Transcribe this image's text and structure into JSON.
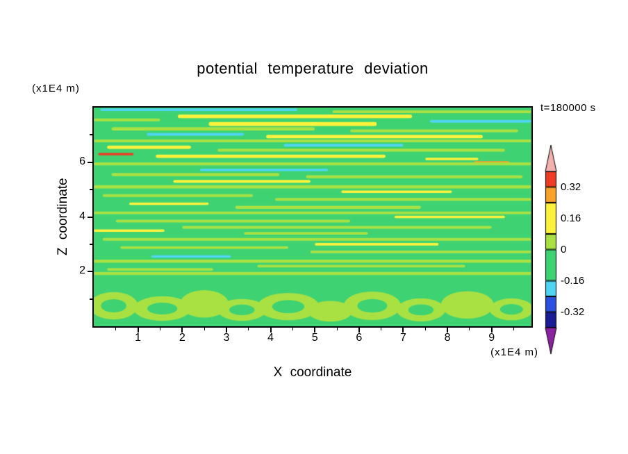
{
  "chart_data": {
    "type": "contour",
    "title": "potential temperature deviation",
    "timestamp": "t=180000 s",
    "axes": {
      "x": {
        "label": "X coordinate",
        "unit": "(x1E4 m)",
        "range": [
          0,
          9.9
        ],
        "major": [
          1,
          2,
          3,
          4,
          5,
          6,
          7,
          8,
          9
        ],
        "major_labels": [
          "1",
          "2",
          "3",
          "4",
          "5",
          "6",
          "7",
          "8",
          "9"
        ],
        "minor": [
          0.5,
          1.5,
          2.5,
          3.5,
          4.5,
          5.5,
          6.5,
          7.5,
          8.5,
          9.5
        ]
      },
      "z": {
        "label": "Z coordinate",
        "unit": "(x1E4 m)",
        "range": [
          0,
          8
        ],
        "major": [
          2,
          4,
          6
        ],
        "major_labels": [
          "2",
          "4",
          "6"
        ],
        "minor": [
          1,
          3,
          5,
          7
        ]
      }
    },
    "palette": {
      "pink": "#f2b1ad",
      "red": "#ee3d24",
      "orange": "#fba22a",
      "yellow": "#fdf23b",
      "yellow_green": "#a9e143",
      "green": "#3ed273",
      "cyan": "#4fd5f2",
      "blue": "#2b50df",
      "navy": "#191c96",
      "purple": "#8b22a0"
    },
    "colorbar": {
      "top_arrow": "pink",
      "bottom_arrow": "purple",
      "top_value": 0.4,
      "band_step": 0.08,
      "bands": [
        {
          "color": "red",
          "span": 1
        },
        {
          "color": "orange",
          "span": 1
        },
        {
          "color": "yellow",
          "span": 2
        },
        {
          "color": "yellow_green",
          "span": 1
        },
        {
          "color": "green",
          "span": 2
        },
        {
          "color": "cyan",
          "span": 1
        },
        {
          "color": "blue",
          "span": 1
        },
        {
          "color": "navy",
          "span": 1
        }
      ],
      "label_values": [
        0.32,
        0.16,
        0,
        -0.16,
        -0.32
      ],
      "labels": [
        "0.32",
        "0.16",
        "0",
        "-0.16",
        "-0.32"
      ]
    },
    "field": {
      "background": "green",
      "streaks": [
        [
          0.15,
          4.6,
          7.92,
          0.1,
          "cyan"
        ],
        [
          5.4,
          9.9,
          7.85,
          0.1,
          "yellow_green"
        ],
        [
          1.9,
          7.2,
          7.68,
          0.13,
          "yellow"
        ],
        [
          0.0,
          1.5,
          7.55,
          0.1,
          "yellow_green"
        ],
        [
          7.6,
          9.9,
          7.5,
          0.1,
          "cyan"
        ],
        [
          2.6,
          6.4,
          7.4,
          0.14,
          "yellow"
        ],
        [
          0.4,
          5.0,
          7.22,
          0.12,
          "yellow_green"
        ],
        [
          5.8,
          9.6,
          7.15,
          0.1,
          "yellow_green"
        ],
        [
          1.2,
          3.4,
          7.02,
          0.1,
          "cyan"
        ],
        [
          3.9,
          8.8,
          6.94,
          0.13,
          "yellow"
        ],
        [
          0.0,
          9.9,
          6.78,
          0.1,
          "yellow_green"
        ],
        [
          4.3,
          7.0,
          6.62,
          0.1,
          "cyan"
        ],
        [
          0.3,
          2.2,
          6.55,
          0.12,
          "yellow"
        ],
        [
          2.8,
          9.3,
          6.44,
          0.11,
          "yellow_green"
        ],
        [
          0.1,
          0.9,
          6.3,
          0.09,
          "red"
        ],
        [
          1.4,
          6.6,
          6.22,
          0.12,
          "yellow"
        ],
        [
          7.5,
          8.7,
          6.12,
          0.09,
          "yellow"
        ],
        [
          8.6,
          9.4,
          6.0,
          0.08,
          "orange"
        ],
        [
          0.0,
          9.9,
          5.94,
          0.11,
          "yellow_green"
        ],
        [
          2.4,
          5.3,
          5.72,
          0.09,
          "cyan"
        ],
        [
          0.4,
          4.2,
          5.55,
          0.11,
          "yellow_green"
        ],
        [
          4.8,
          9.7,
          5.47,
          0.11,
          "yellow_green"
        ],
        [
          1.8,
          4.9,
          5.3,
          0.1,
          "yellow"
        ],
        [
          0.0,
          9.9,
          5.1,
          0.12,
          "yellow_green"
        ],
        [
          5.6,
          8.1,
          4.92,
          0.09,
          "yellow"
        ],
        [
          0.2,
          3.6,
          4.78,
          0.1,
          "yellow_green"
        ],
        [
          4.1,
          9.9,
          4.64,
          0.1,
          "yellow_green"
        ],
        [
          0.8,
          2.6,
          4.48,
          0.09,
          "yellow"
        ],
        [
          3.2,
          7.4,
          4.35,
          0.11,
          "yellow_green"
        ],
        [
          0.0,
          9.9,
          4.15,
          0.1,
          "yellow_green"
        ],
        [
          6.8,
          9.3,
          4.0,
          0.09,
          "yellow"
        ],
        [
          0.5,
          5.8,
          3.85,
          0.1,
          "yellow_green"
        ],
        [
          2.0,
          9.0,
          3.62,
          0.1,
          "yellow_green"
        ],
        [
          0.0,
          1.6,
          3.5,
          0.09,
          "yellow"
        ],
        [
          3.4,
          6.2,
          3.4,
          0.1,
          "yellow_green"
        ],
        [
          0.2,
          9.9,
          3.18,
          0.1,
          "yellow_green"
        ],
        [
          5.0,
          7.8,
          3.0,
          0.09,
          "yellow"
        ],
        [
          0.6,
          4.4,
          2.88,
          0.1,
          "yellow_green"
        ],
        [
          4.9,
          9.9,
          2.72,
          0.1,
          "yellow_green"
        ],
        [
          1.3,
          3.1,
          2.55,
          0.09,
          "cyan"
        ],
        [
          0.0,
          9.9,
          2.38,
          0.11,
          "yellow_green"
        ],
        [
          3.7,
          8.4,
          2.2,
          0.1,
          "yellow_green"
        ],
        [
          0.3,
          2.7,
          2.08,
          0.1,
          "yellow_green"
        ],
        [
          0.0,
          9.9,
          1.93,
          0.12,
          "yellow_green"
        ]
      ],
      "cells": [
        [
          0.45,
          0.75,
          0.55,
          0.5,
          1
        ],
        [
          1.55,
          0.65,
          0.65,
          0.45,
          1
        ],
        [
          2.5,
          0.82,
          0.55,
          0.5,
          0
        ],
        [
          3.35,
          0.6,
          0.55,
          0.4,
          1
        ],
        [
          4.4,
          0.72,
          0.7,
          0.5,
          1
        ],
        [
          5.35,
          0.55,
          0.5,
          0.38,
          0
        ],
        [
          6.3,
          0.75,
          0.65,
          0.52,
          1
        ],
        [
          7.4,
          0.6,
          0.55,
          0.42,
          1
        ],
        [
          8.45,
          0.78,
          0.6,
          0.5,
          0
        ],
        [
          9.45,
          0.62,
          0.5,
          0.4,
          1
        ]
      ]
    }
  }
}
